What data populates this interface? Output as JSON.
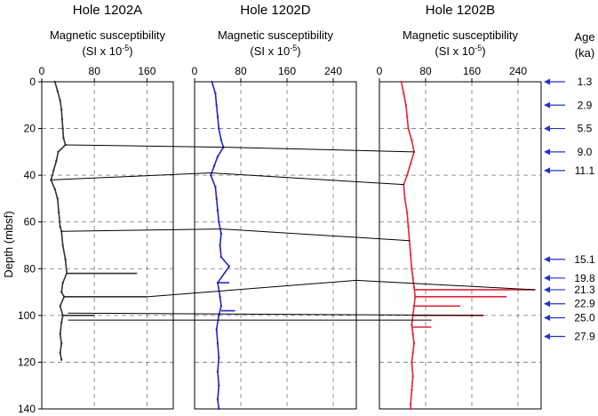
{
  "figure": {
    "y_axis_label": "Depth (mbsf)",
    "age_header_line1": "Age",
    "age_header_line2": "(ka)"
  },
  "chart_data": [
    {
      "type": "line",
      "title": "Hole 1202A",
      "xlabel_line1": "Magnetic susceptibility",
      "xlabel_line2": "(SI x 10",
      "xlabel_exponent": "-5",
      "xlabel_close": ")",
      "xlim": [
        0,
        200
      ],
      "xticks": [
        0,
        80,
        160
      ],
      "ylim": [
        0,
        140
      ],
      "yticks": [
        0,
        20,
        40,
        60,
        80,
        100,
        120,
        140
      ],
      "y_inverted": true,
      "grid": "dashed",
      "color": "#333333",
      "series": [
        {
          "values": [
            {
              "depth": 0,
              "ms": 20
            },
            {
              "depth": 4,
              "ms": 24
            },
            {
              "depth": 8,
              "ms": 28
            },
            {
              "depth": 12,
              "ms": 30
            },
            {
              "depth": 16,
              "ms": 31
            },
            {
              "depth": 20,
              "ms": 32
            },
            {
              "depth": 24,
              "ms": 33
            },
            {
              "depth": 27,
              "ms": 36
            },
            {
              "depth": 30,
              "ms": 25
            },
            {
              "depth": 34,
              "ms": 22
            },
            {
              "depth": 38,
              "ms": 18
            },
            {
              "depth": 42,
              "ms": 14
            },
            {
              "depth": 46,
              "ms": 20
            },
            {
              "depth": 50,
              "ms": 24
            },
            {
              "depth": 56,
              "ms": 26
            },
            {
              "depth": 62,
              "ms": 28
            },
            {
              "depth": 64,
              "ms": 30
            },
            {
              "depth": 70,
              "ms": 32
            },
            {
              "depth": 76,
              "ms": 36
            },
            {
              "depth": 82,
              "ms": 38
            },
            {
              "depth": 86,
              "ms": 32
            },
            {
              "depth": 90,
              "ms": 30
            },
            {
              "depth": 92,
              "ms": 34
            },
            {
              "depth": 96,
              "ms": 28
            },
            {
              "depth": 100,
              "ms": 32
            },
            {
              "depth": 103,
              "ms": 30
            },
            {
              "depth": 108,
              "ms": 28
            },
            {
              "depth": 112,
              "ms": 30
            },
            {
              "depth": 116,
              "ms": 28
            },
            {
              "depth": 119,
              "ms": 30
            }
          ]
        }
      ],
      "spikes": [
        {
          "depth": 82,
          "ms": 145
        },
        {
          "depth": 92,
          "ms": 160
        },
        {
          "depth": 100,
          "ms": 80
        }
      ]
    },
    {
      "type": "line",
      "title": "Hole 1202D",
      "xlabel_line1": "Magnetic susceptibility",
      "xlabel_line2": "(SI x 10",
      "xlabel_exponent": "-5",
      "xlabel_close": ")",
      "xlim": [
        0,
        280
      ],
      "xticks": [
        0,
        80,
        160,
        240
      ],
      "ylim": [
        0,
        140
      ],
      "y_inverted": true,
      "grid": "dashed",
      "color": "#2222cc",
      "series": [
        {
          "values": [
            {
              "depth": 0,
              "ms": 30
            },
            {
              "depth": 5,
              "ms": 36
            },
            {
              "depth": 10,
              "ms": 38
            },
            {
              "depth": 15,
              "ms": 40
            },
            {
              "depth": 20,
              "ms": 42
            },
            {
              "depth": 25,
              "ms": 46
            },
            {
              "depth": 28,
              "ms": 50
            },
            {
              "depth": 32,
              "ms": 40
            },
            {
              "depth": 36,
              "ms": 34
            },
            {
              "depth": 40,
              "ms": 28
            },
            {
              "depth": 45,
              "ms": 36
            },
            {
              "depth": 50,
              "ms": 38
            },
            {
              "depth": 55,
              "ms": 40
            },
            {
              "depth": 60,
              "ms": 42
            },
            {
              "depth": 65,
              "ms": 46
            },
            {
              "depth": 70,
              "ms": 44
            },
            {
              "depth": 75,
              "ms": 46
            },
            {
              "depth": 79,
              "ms": 60
            },
            {
              "depth": 86,
              "ms": 40
            },
            {
              "depth": 92,
              "ms": 44
            },
            {
              "depth": 96,
              "ms": 46
            },
            {
              "depth": 100,
              "ms": 42
            },
            {
              "depth": 106,
              "ms": 38
            },
            {
              "depth": 112,
              "ms": 40
            },
            {
              "depth": 118,
              "ms": 42
            },
            {
              "depth": 124,
              "ms": 40
            },
            {
              "depth": 130,
              "ms": 42
            },
            {
              "depth": 136,
              "ms": 40
            },
            {
              "depth": 140,
              "ms": 42
            }
          ]
        }
      ],
      "spikes": [
        {
          "depth": 86,
          "ms": 60
        },
        {
          "depth": 98,
          "ms": 70
        }
      ]
    },
    {
      "type": "line",
      "title": "Hole 1202B",
      "xlabel_line1": "Magnetic susceptibility",
      "xlabel_line2": "(SI x 10",
      "xlabel_exponent": "-5",
      "xlabel_close": ")",
      "xlim": [
        0,
        280
      ],
      "xticks": [
        0,
        80,
        160,
        240
      ],
      "ylim": [
        0,
        140
      ],
      "y_inverted": true,
      "grid": "dashed",
      "color": "#e8203a",
      "series": [
        {
          "values": [
            {
              "depth": 0,
              "ms": 38
            },
            {
              "depth": 5,
              "ms": 42
            },
            {
              "depth": 10,
              "ms": 46
            },
            {
              "depth": 15,
              "ms": 48
            },
            {
              "depth": 20,
              "ms": 50
            },
            {
              "depth": 25,
              "ms": 56
            },
            {
              "depth": 30,
              "ms": 60
            },
            {
              "depth": 35,
              "ms": 54
            },
            {
              "depth": 40,
              "ms": 48
            },
            {
              "depth": 44,
              "ms": 42
            },
            {
              "depth": 50,
              "ms": 44
            },
            {
              "depth": 56,
              "ms": 48
            },
            {
              "depth": 62,
              "ms": 50
            },
            {
              "depth": 68,
              "ms": 52
            },
            {
              "depth": 74,
              "ms": 54
            },
            {
              "depth": 80,
              "ms": 56
            },
            {
              "depth": 84,
              "ms": 58
            },
            {
              "depth": 88,
              "ms": 60
            },
            {
              "depth": 92,
              "ms": 62
            },
            {
              "depth": 96,
              "ms": 60
            },
            {
              "depth": 100,
              "ms": 58
            },
            {
              "depth": 104,
              "ms": 56
            },
            {
              "depth": 108,
              "ms": 58
            },
            {
              "depth": 112,
              "ms": 60
            },
            {
              "depth": 116,
              "ms": 58
            },
            {
              "depth": 120,
              "ms": 56
            },
            {
              "depth": 126,
              "ms": 58
            },
            {
              "depth": 132,
              "ms": 56
            },
            {
              "depth": 138,
              "ms": 54
            },
            {
              "depth": 140,
              "ms": 54
            }
          ]
        }
      ],
      "spikes": [
        {
          "depth": 89,
          "ms": 270
        },
        {
          "depth": 92,
          "ms": 220
        },
        {
          "depth": 96,
          "ms": 140
        },
        {
          "depth": 100,
          "ms": 180
        },
        {
          "depth": 105,
          "ms": 90
        }
      ]
    }
  ],
  "correlation_lines": [
    {
      "from": {
        "hole": 0,
        "depth": 27,
        "ms": 36
      },
      "to": {
        "hole": 1,
        "depth": 28,
        "ms": 50
      }
    },
    {
      "from": {
        "hole": 1,
        "depth": 28,
        "ms": 50
      },
      "to": {
        "hole": 2,
        "depth": 30,
        "ms": 60
      }
    },
    {
      "from": {
        "hole": 0,
        "depth": 42,
        "ms": 14
      },
      "to": {
        "hole": 1,
        "depth": 39,
        "ms": 28
      }
    },
    {
      "from": {
        "hole": 1,
        "depth": 39,
        "ms": 28
      },
      "to": {
        "hole": 2,
        "depth": 44,
        "ms": 42
      }
    },
    {
      "from": {
        "hole": 0,
        "depth": 64,
        "ms": 30
      },
      "to": {
        "hole": 1,
        "depth": 63,
        "ms": 46
      }
    },
    {
      "from": {
        "hole": 1,
        "depth": 63,
        "ms": 46
      },
      "to": {
        "hole": 2,
        "depth": 68,
        "ms": 52
      }
    },
    {
      "from": {
        "hole": 0,
        "depth": 92,
        "ms": 160
      },
      "to": {
        "hole": 1,
        "depth": 85,
        "ms": 280
      }
    },
    {
      "from": {
        "hole": 1,
        "depth": 85,
        "ms": 280
      },
      "to": {
        "hole": 2,
        "depth": 89,
        "ms": 270
      }
    },
    {
      "from": {
        "hole": 0,
        "depth": 99,
        "ms": 40
      },
      "to": {
        "hole": 2,
        "depth": 100,
        "ms": 180
      }
    },
    {
      "from": {
        "hole": 0,
        "depth": 102,
        "ms": 40
      },
      "to": {
        "hole": 2,
        "depth": 102,
        "ms": 90
      }
    }
  ],
  "ages": [
    {
      "depth": 0,
      "label": "1.3"
    },
    {
      "depth": 10,
      "label": "2.9"
    },
    {
      "depth": 20,
      "label": "5.5"
    },
    {
      "depth": 30,
      "label": "9.0"
    },
    {
      "depth": 38,
      "label": "11.1"
    },
    {
      "depth": 76,
      "label": "15.1"
    },
    {
      "depth": 84,
      "label": "19.8"
    },
    {
      "depth": 89,
      "label": "21.3"
    },
    {
      "depth": 95,
      "label": "22.9"
    },
    {
      "depth": 101,
      "label": "25.0"
    },
    {
      "depth": 109,
      "label": "27.9"
    }
  ],
  "arrow_color": "#2233cc"
}
